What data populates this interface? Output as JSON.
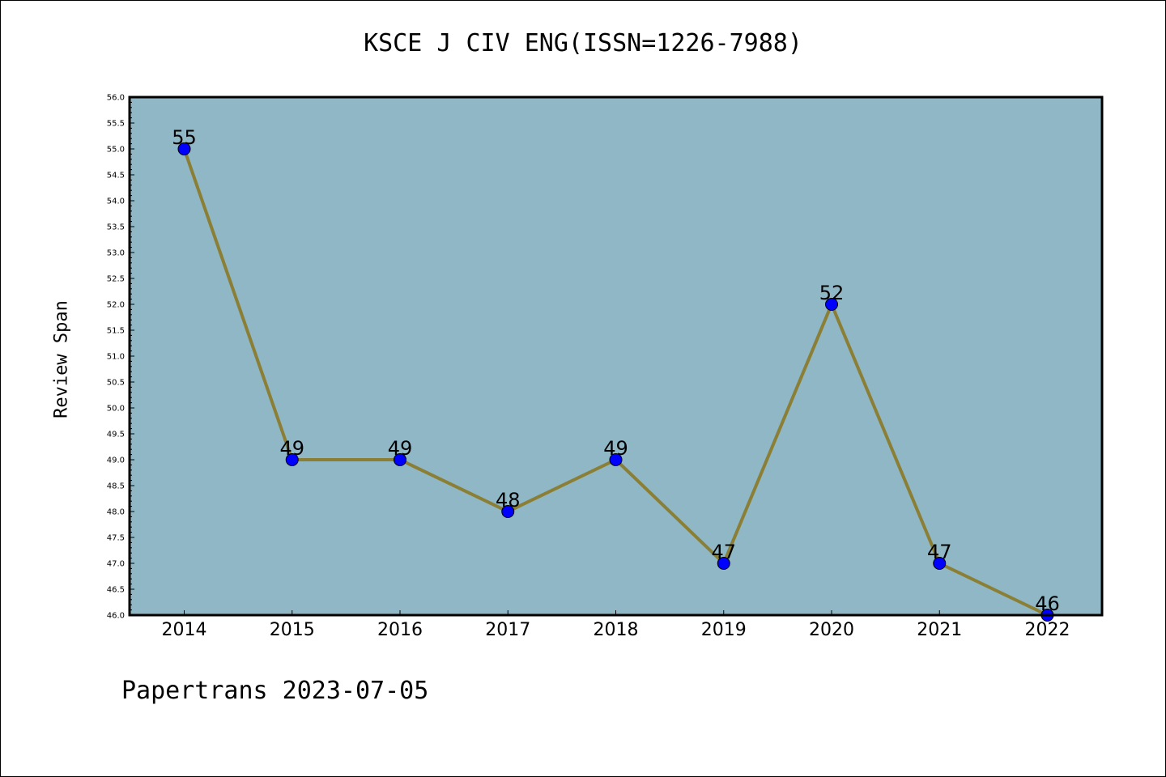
{
  "chart_data": {
    "type": "line",
    "title": "KSCE J CIV ENG(ISSN=1226-7988)",
    "xlabel": "",
    "ylabel": "Review Span",
    "categories": [
      "2014",
      "2015",
      "2016",
      "2017",
      "2018",
      "2019",
      "2020",
      "2021",
      "2022"
    ],
    "values": [
      55,
      49,
      49,
      48,
      49,
      47,
      52,
      47,
      46
    ],
    "ylim": [
      46.0,
      56.0
    ],
    "ytick_step": 0.5,
    "grid": false,
    "legend": "none",
    "colors": {
      "plot_background": "#8fb7c5",
      "line": "#8b7f36",
      "marker": "#0000ff"
    }
  },
  "footer": "Papertrans 2023-07-05"
}
